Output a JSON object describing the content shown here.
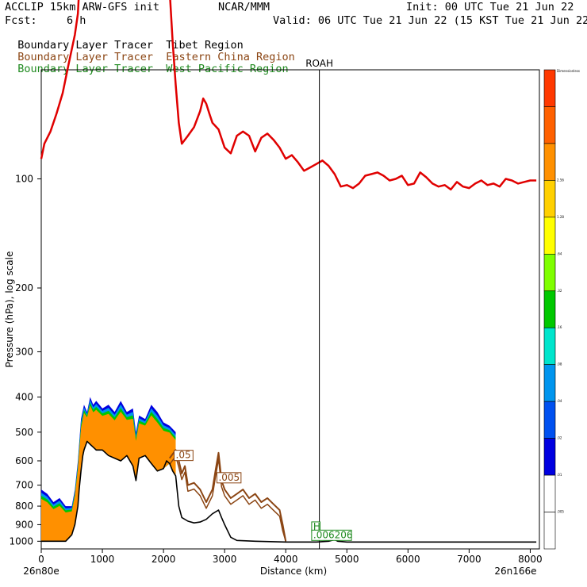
{
  "header": {
    "model": "ACCLIP 15km ARW-GFS init",
    "org": "NCAR/MMM",
    "init": "Init: 00 UTC Tue 21 Jun 22",
    "fcst_label": "Fcst:",
    "fcst_value": "6 h",
    "valid": "Valid: 06 UTC Tue 21 Jun 22 (15 KST Tue 21 Jun 22)"
  },
  "legend": [
    {
      "label": "Boundary Layer Tracer",
      "region": "Tibet Region",
      "color": "#000000"
    },
    {
      "label": "Boundary Layer Tracer",
      "region": "Eastern China Region",
      "color": "#8b4513"
    },
    {
      "label": "Boundary Layer Tracer",
      "region": "West Pacific Region",
      "color": "#1f8a1f"
    }
  ],
  "chart_data": {
    "type": "area",
    "xlabel": "Distance (km)",
    "ylabel": "Pressure (hPa), log scale",
    "x_ticks": [
      "0",
      "1000",
      "2000",
      "3000",
      "4000",
      "5000",
      "6000",
      "7000",
      "8000"
    ],
    "y_ticks": [
      "100",
      "200",
      "300",
      "400",
      "500",
      "600",
      "700",
      "800",
      "900",
      "1000"
    ],
    "y_scale": "log",
    "xlim": [
      0,
      8150
    ],
    "ylim": [
      1050,
      50
    ],
    "start_label": "26n80e",
    "end_label": "26n166e",
    "marker": {
      "label": "ROAH",
      "x": 4550
    },
    "annotations": [
      {
        "text": ".05",
        "x": 2200,
        "p": 590,
        "color": "#8b4513"
      },
      {
        "text": ".005",
        "x": 2900,
        "p": 680,
        "color": "#8b4513"
      },
      {
        "text": "H",
        "x": 4450,
        "p": 930,
        "color": "#1f8a1f"
      },
      {
        "text": ".006206",
        "x": 4450,
        "p": 980,
        "color": "#1f8a1f"
      }
    ],
    "colorbar": {
      "top_label": "Dimensionless",
      "levels": [
        ".005",
        ".01",
        ".02",
        ".04",
        ".08",
        ".16",
        ".32",
        ".64",
        "1.28",
        "2.56"
      ],
      "colors": [
        "#ffffff",
        "#ffffff",
        "#0000e0",
        "#0050f0",
        "#0095ee",
        "#00e5cc",
        "#00c800",
        "#7fff00",
        "#ffff00",
        "#ffd000",
        "#ff9000",
        "#ff6000",
        "#ff3800"
      ]
    },
    "series": [
      {
        "name": "tropopause",
        "color": "#e00000",
        "x": [
          0,
          50,
          150,
          250,
          350,
          450,
          550,
          600,
          620
        ],
        "p": [
          88,
          80,
          74,
          66,
          58,
          48,
          40,
          35,
          30
        ],
        "x2": [
          2100,
          2150,
          2200,
          2250,
          2300,
          2400,
          2500,
          2600,
          2650,
          2700,
          2750,
          2800,
          2900,
          3000,
          3100,
          3200,
          3300,
          3400,
          3500,
          3600,
          3700,
          3800,
          3900,
          4000,
          4100,
          4200,
          4300,
          4400,
          4500,
          4600,
          4700,
          4800,
          4900,
          5000,
          5100,
          5200,
          5300,
          5400,
          5500,
          5600,
          5700,
          5800,
          5900,
          6000,
          6100,
          6200,
          6300,
          6400,
          6500,
          6600,
          6700,
          6800,
          6900,
          7000,
          7100,
          7200,
          7300,
          7400,
          7500,
          7600,
          7700,
          7800,
          7900,
          8000,
          8100
        ],
        "p2": [
          30,
          42,
          55,
          70,
          80,
          76,
          72,
          65,
          60,
          62,
          66,
          70,
          73,
          82,
          85,
          76,
          74,
          76,
          84,
          77,
          75,
          78,
          82,
          88,
          86,
          90,
          95,
          93,
          91,
          89,
          92,
          97,
          105,
          104,
          106,
          103,
          98,
          97,
          96,
          98,
          101,
          100,
          98,
          104,
          103,
          96,
          99,
          103,
          105,
          104,
          107,
          102,
          105,
          106,
          103,
          101,
          104,
          103,
          105,
          100,
          101,
          103,
          102,
          101,
          101
        ]
      },
      {
        "name": "tibet_surface",
        "color": "#000000",
        "x": [
          0,
          100,
          200,
          300,
          400,
          500,
          550,
          600,
          620,
          650,
          680,
          700,
          750,
          800,
          850,
          900,
          1000,
          1100,
          1200,
          1300,
          1400,
          1500,
          1550,
          1600,
          1700,
          1800,
          1900,
          2000,
          2050,
          2100,
          2150,
          2200,
          2250,
          2300,
          2400,
          2500,
          2600,
          2700,
          2800,
          2900,
          2950,
          3000,
          3100,
          3200,
          3500,
          4000,
          4200,
          4500,
          4700,
          4800,
          4850,
          5000,
          6000,
          8100
        ],
        "p": [
          1000,
          1000,
          1000,
          1000,
          1000,
          960,
          900,
          800,
          720,
          640,
          580,
          560,
          530,
          540,
          550,
          560,
          560,
          580,
          590,
          600,
          580,
          620,
          680,
          590,
          580,
          610,
          640,
          630,
          600,
          610,
          640,
          660,
          800,
          860,
          880,
          890,
          885,
          870,
          840,
          820,
          860,
          900,
          975,
          995,
          1000,
          1005,
          1005,
          1005,
          1000,
          990,
          1000,
          1005,
          1005,
          1005
        ]
      },
      {
        "name": "eastern_china",
        "color": "#8b4513",
        "x": [
          2100,
          2200,
          2250,
          2300,
          2350,
          2400,
          2500,
          2600,
          2700,
          2800,
          2850,
          2900,
          2950,
          3000,
          3100,
          3200,
          3300,
          3400,
          3500,
          3600,
          3700,
          3800,
          3900,
          3950,
          4000
        ],
        "p": [
          590,
          560,
          600,
          650,
          620,
          700,
          690,
          720,
          780,
          720,
          640,
          570,
          680,
          720,
          760,
          740,
          720,
          760,
          740,
          780,
          760,
          790,
          820,
          900,
          1000
        ]
      },
      {
        "name": "tracer_top",
        "x": [
          0,
          100,
          200,
          300,
          400,
          500,
          550,
          600,
          650,
          700,
          750,
          800,
          850,
          900,
          1000,
          1100,
          1200,
          1300,
          1400,
          1500,
          1550,
          1600,
          1700,
          1800,
          1900,
          2000,
          2100,
          2150,
          2200
        ],
        "p": [
          720,
          740,
          780,
          760,
          800,
          800,
          720,
          600,
          460,
          420,
          440,
          400,
          420,
          410,
          430,
          420,
          440,
          410,
          440,
          430,
          500,
          450,
          460,
          420,
          440,
          470,
          480,
          490,
          500
        ]
      }
    ]
  }
}
